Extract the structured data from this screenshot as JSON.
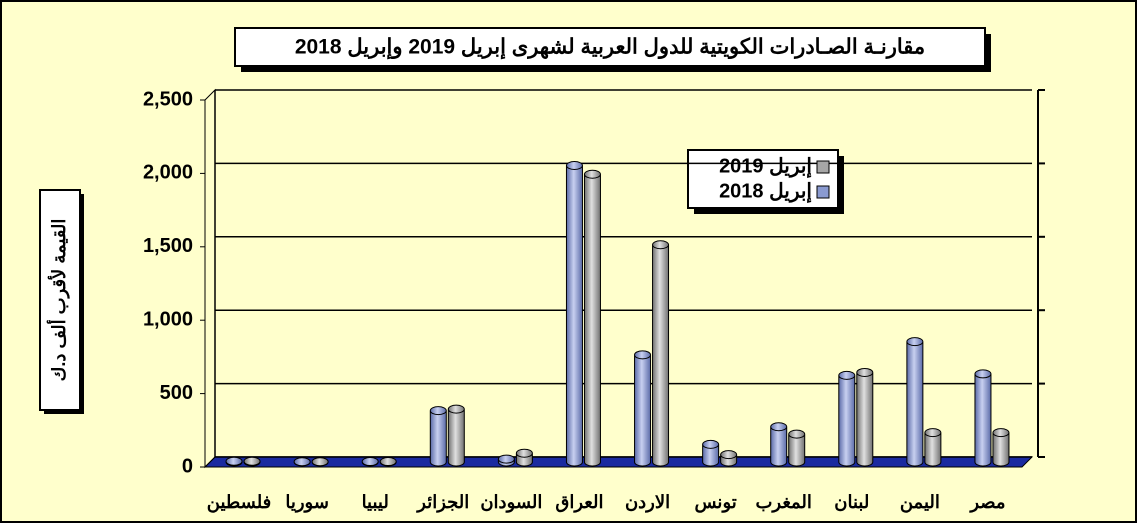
{
  "chart_data": {
    "type": "bar",
    "title": "مقارنـة الصـادرات الكويتية للدول العربية لشهرى إبريل 2019 وإبريل 2018",
    "y_label": "القيمة لأقرب ألف د.ك",
    "categories": [
      "فلسطين",
      "سوريا",
      "ليبيا",
      "الجزائر",
      "السودان",
      "العراق",
      "الاردن",
      "تونس",
      "المغرب",
      "لبنان",
      "اليمن",
      "مصر"
    ],
    "series": [
      {
        "name": "إبريل 2018",
        "color": "#8a9ad0",
        "values": [
          5,
          2,
          3,
          350,
          20,
          2020,
          730,
          120,
          240,
          590,
          820,
          600
        ]
      },
      {
        "name": "إبريل 2019",
        "color": "#a6a6a6",
        "values": [
          5,
          2,
          3,
          360,
          60,
          1960,
          1480,
          50,
          190,
          610,
          200,
          200
        ]
      }
    ],
    "ylim": [
      0,
      2500
    ],
    "yticks": [
      0,
      500,
      {
        "value": 1000,
        "label": "1,000"
      },
      {
        "value": 1500,
        "label": "1,500"
      },
      {
        "value": 2000,
        "label": "2,000"
      },
      {
        "value": 2500,
        "label": "2,500"
      }
    ],
    "grid": true
  }
}
